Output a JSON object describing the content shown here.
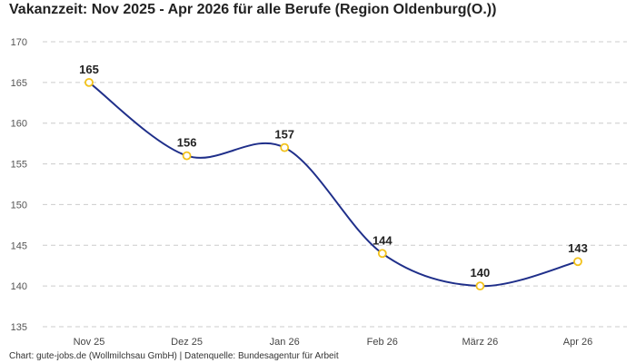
{
  "title": "Vakanzzeit: Nov 2025 - Apr 2026 für alle Berufe (Region Oldenburg(O.))",
  "footer": "Chart: gute-jobs.de (Wollmilchsau GmbH) | Datenquelle: Bundesagentur für Arbeit",
  "colors": {
    "line": "#1f2f8a",
    "marker_stroke": "#f2c21b",
    "marker_fill": "#ffffff",
    "grid": "#cccccc"
  },
  "chart_data": {
    "type": "line",
    "title": "Vakanzzeit: Nov 2025 - Apr 2026 für alle Berufe (Region Oldenburg(O.))",
    "categories": [
      "Nov 25",
      "Dez 25",
      "Jan 26",
      "Feb 26",
      "März 26",
      "Apr 26"
    ],
    "series": [
      {
        "values": [
          165,
          156,
          157,
          144,
          140,
          143
        ]
      }
    ],
    "ylim": [
      135,
      170
    ],
    "yticks": [
      135,
      140,
      145,
      150,
      155,
      160,
      165,
      170
    ],
    "grid": true,
    "legend": "none",
    "data_labels": true
  }
}
